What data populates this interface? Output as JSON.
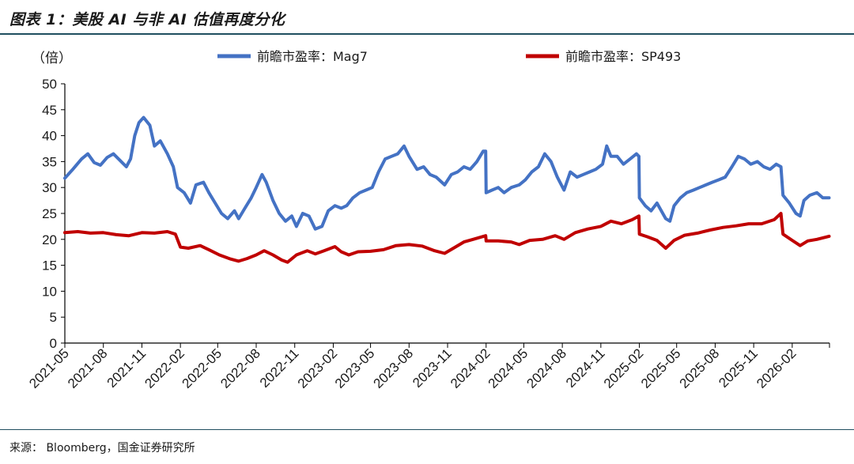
{
  "header": {
    "title": "图表 1：美股 AI 与非 AI 估值再度分化"
  },
  "footer": {
    "source": "来源： Bloomberg，国金证券研究所"
  },
  "chart_data": {
    "type": "line",
    "title": "图表 1：美股 AI 与非 AI 估值再度分化",
    "ylabel": "（倍）",
    "xlabel": "",
    "ylim": [
      0,
      50
    ],
    "yticks": [
      0,
      5,
      10,
      15,
      20,
      25,
      30,
      35,
      40,
      45,
      50
    ],
    "xlim": [
      "2021-05",
      "2026-05"
    ],
    "xticks": [
      "2021-05",
      "2021-08",
      "2021-11",
      "2022-02",
      "2022-05",
      "2022-08",
      "2022-11",
      "2023-02",
      "2023-05",
      "2023-08",
      "2023-11",
      "2024-02",
      "2024-05",
      "2024-08",
      "2024-11",
      "2025-02",
      "2025-05",
      "2025-08",
      "2025-11",
      "2026-02"
    ],
    "grid": false,
    "legend_position": "top",
    "colors": {
      "Mag7": "#4472c4",
      "SP493": "#c00000"
    },
    "series": [
      {
        "name": "前瞻市盈率：Mag7",
        "points": [
          [
            "2021-05-01",
            31.8
          ],
          [
            "2021-05-20",
            33.5
          ],
          [
            "2021-06-10",
            35.5
          ],
          [
            "2021-06-25",
            36.5
          ],
          [
            "2021-07-10",
            34.8
          ],
          [
            "2021-07-25",
            34.3
          ],
          [
            "2021-08-10",
            35.8
          ],
          [
            "2021-08-25",
            36.5
          ],
          [
            "2021-09-10",
            35.2
          ],
          [
            "2021-09-25",
            34.0
          ],
          [
            "2021-10-05",
            35.5
          ],
          [
            "2021-10-15",
            40.0
          ],
          [
            "2021-10-25",
            42.5
          ],
          [
            "2021-11-05",
            43.5
          ],
          [
            "2021-11-20",
            42.0
          ],
          [
            "2021-12-01",
            38.0
          ],
          [
            "2021-12-15",
            39.0
          ],
          [
            "2022-01-01",
            36.5
          ],
          [
            "2022-01-15",
            34.0
          ],
          [
            "2022-01-25",
            30.0
          ],
          [
            "2022-02-10",
            29.0
          ],
          [
            "2022-02-25",
            27.0
          ],
          [
            "2022-03-10",
            30.5
          ],
          [
            "2022-03-28",
            31.0
          ],
          [
            "2022-04-10",
            29.0
          ],
          [
            "2022-04-25",
            27.0
          ],
          [
            "2022-05-10",
            25.0
          ],
          [
            "2022-05-25",
            24.0
          ],
          [
            "2022-06-10",
            25.5
          ],
          [
            "2022-06-20",
            24.0
          ],
          [
            "2022-07-05",
            26.0
          ],
          [
            "2022-07-20",
            28.0
          ],
          [
            "2022-08-01",
            30.0
          ],
          [
            "2022-08-15",
            32.5
          ],
          [
            "2022-08-25",
            31.0
          ],
          [
            "2022-09-10",
            27.5
          ],
          [
            "2022-09-25",
            25.0
          ],
          [
            "2022-10-10",
            23.5
          ],
          [
            "2022-10-25",
            24.5
          ],
          [
            "2022-11-05",
            22.5
          ],
          [
            "2022-11-20",
            25.0
          ],
          [
            "2022-12-05",
            24.5
          ],
          [
            "2022-12-20",
            22.0
          ],
          [
            "2023-01-05",
            22.5
          ],
          [
            "2023-01-20",
            25.5
          ],
          [
            "2023-02-05",
            26.5
          ],
          [
            "2023-02-20",
            26.0
          ],
          [
            "2023-03-05",
            26.5
          ],
          [
            "2023-03-20",
            28.0
          ],
          [
            "2023-04-05",
            29.0
          ],
          [
            "2023-04-20",
            29.5
          ],
          [
            "2023-05-05",
            30.0
          ],
          [
            "2023-05-20",
            33.0
          ],
          [
            "2023-06-05",
            35.5
          ],
          [
            "2023-06-20",
            36.0
          ],
          [
            "2023-07-05",
            36.5
          ],
          [
            "2023-07-20",
            38.0
          ],
          [
            "2023-08-01",
            36.0
          ],
          [
            "2023-08-20",
            33.5
          ],
          [
            "2023-09-05",
            34.0
          ],
          [
            "2023-09-20",
            32.5
          ],
          [
            "2023-10-05",
            32.0
          ],
          [
            "2023-10-25",
            30.5
          ],
          [
            "2023-11-10",
            32.5
          ],
          [
            "2023-11-25",
            33.0
          ],
          [
            "2023-12-10",
            34.0
          ],
          [
            "2023-12-25",
            33.5
          ],
          [
            "2024-01-10",
            35.0
          ],
          [
            "2024-01-25",
            37.0
          ],
          [
            "2024-01-31",
            37.0
          ],
          [
            "2024-02-01",
            29.0
          ],
          [
            "2024-02-15",
            29.5
          ],
          [
            "2024-03-01",
            30.0
          ],
          [
            "2024-03-15",
            29.0
          ],
          [
            "2024-04-01",
            30.0
          ],
          [
            "2024-04-20",
            30.5
          ],
          [
            "2024-05-05",
            31.5
          ],
          [
            "2024-05-20",
            33.0
          ],
          [
            "2024-06-05",
            34.0
          ],
          [
            "2024-06-20",
            36.5
          ],
          [
            "2024-07-05",
            35.0
          ],
          [
            "2024-07-20",
            32.0
          ],
          [
            "2024-08-05",
            29.5
          ],
          [
            "2024-08-20",
            33.0
          ],
          [
            "2024-09-05",
            32.0
          ],
          [
            "2024-09-20",
            32.5
          ],
          [
            "2024-10-05",
            33.0
          ],
          [
            "2024-10-20",
            33.5
          ],
          [
            "2024-11-05",
            34.5
          ],
          [
            "2024-11-15",
            38.0
          ],
          [
            "2024-11-25",
            36.0
          ],
          [
            "2024-12-10",
            36.0
          ],
          [
            "2024-12-25",
            34.5
          ],
          [
            "2025-01-10",
            35.5
          ],
          [
            "2025-01-25",
            36.5
          ],
          [
            "2025-01-31",
            36.0
          ],
          [
            "2025-02-01",
            28.0
          ],
          [
            "2025-02-15",
            26.5
          ],
          [
            "2025-03-01",
            25.5
          ],
          [
            "2025-03-15",
            27.0
          ],
          [
            "2025-04-05",
            24.0
          ],
          [
            "2025-04-15",
            23.5
          ],
          [
            "2025-04-25",
            26.5
          ],
          [
            "2025-05-10",
            28.0
          ],
          [
            "2025-05-25",
            29.0
          ],
          [
            "2025-06-10",
            29.5
          ],
          [
            "2025-06-25",
            30.0
          ],
          [
            "2025-07-10",
            30.5
          ],
          [
            "2025-07-25",
            31.0
          ],
          [
            "2025-08-10",
            31.5
          ],
          [
            "2025-08-25",
            32.0
          ],
          [
            "2025-09-10",
            34.0
          ],
          [
            "2025-09-25",
            36.0
          ],
          [
            "2025-10-10",
            35.5
          ],
          [
            "2025-10-25",
            34.5
          ],
          [
            "2025-11-10",
            35.0
          ],
          [
            "2025-11-25",
            34.0
          ],
          [
            "2025-12-10",
            33.5
          ],
          [
            "2025-12-25",
            34.5
          ],
          [
            "2026-01-05",
            34.0
          ],
          [
            "2026-01-10",
            28.5
          ],
          [
            "2026-01-25",
            27.0
          ],
          [
            "2026-02-10",
            25.0
          ],
          [
            "2026-02-20",
            24.5
          ],
          [
            "2026-03-01",
            27.5
          ],
          [
            "2026-03-15",
            28.5
          ],
          [
            "2026-04-01",
            29.0
          ],
          [
            "2026-04-15",
            28.0
          ],
          [
            "2026-04-30",
            28.0
          ]
        ]
      },
      {
        "name": "前瞻市盈率：SP493",
        "points": [
          [
            "2021-05-01",
            21.3
          ],
          [
            "2021-06-01",
            21.5
          ],
          [
            "2021-07-01",
            21.2
          ],
          [
            "2021-08-01",
            21.3
          ],
          [
            "2021-09-01",
            20.9
          ],
          [
            "2021-10-01",
            20.7
          ],
          [
            "2021-11-01",
            21.3
          ],
          [
            "2021-12-01",
            21.2
          ],
          [
            "2022-01-01",
            21.5
          ],
          [
            "2022-01-20",
            21.0
          ],
          [
            "2022-02-01",
            18.5
          ],
          [
            "2022-02-20",
            18.3
          ],
          [
            "2022-03-20",
            18.8
          ],
          [
            "2022-04-10",
            18.0
          ],
          [
            "2022-05-05",
            17.0
          ],
          [
            "2022-06-01",
            16.2
          ],
          [
            "2022-06-20",
            15.8
          ],
          [
            "2022-07-10",
            16.3
          ],
          [
            "2022-08-01",
            17.0
          ],
          [
            "2022-08-20",
            17.8
          ],
          [
            "2022-09-10",
            17.0
          ],
          [
            "2022-10-01",
            16.0
          ],
          [
            "2022-10-15",
            15.6
          ],
          [
            "2022-11-05",
            17.0
          ],
          [
            "2022-12-01",
            17.8
          ],
          [
            "2022-12-20",
            17.2
          ],
          [
            "2023-01-10",
            17.8
          ],
          [
            "2023-02-05",
            18.6
          ],
          [
            "2023-02-20",
            17.6
          ],
          [
            "2023-03-10",
            17.0
          ],
          [
            "2023-04-01",
            17.6
          ],
          [
            "2023-05-01",
            17.7
          ],
          [
            "2023-06-01",
            18.0
          ],
          [
            "2023-07-01",
            18.8
          ],
          [
            "2023-08-01",
            19.0
          ],
          [
            "2023-09-01",
            18.7
          ],
          [
            "2023-10-01",
            17.8
          ],
          [
            "2023-10-25",
            17.3
          ],
          [
            "2023-11-15",
            18.3
          ],
          [
            "2023-12-10",
            19.5
          ],
          [
            "2024-01-01",
            20.0
          ],
          [
            "2024-01-31",
            20.7
          ],
          [
            "2024-02-01",
            19.7
          ],
          [
            "2024-03-01",
            19.7
          ],
          [
            "2024-04-01",
            19.5
          ],
          [
            "2024-04-20",
            19.0
          ],
          [
            "2024-05-15",
            19.8
          ],
          [
            "2024-06-15",
            20.0
          ],
          [
            "2024-07-15",
            20.7
          ],
          [
            "2024-08-05",
            20.0
          ],
          [
            "2024-09-01",
            21.3
          ],
          [
            "2024-10-01",
            22.0
          ],
          [
            "2024-11-01",
            22.5
          ],
          [
            "2024-11-25",
            23.5
          ],
          [
            "2024-12-20",
            23.0
          ],
          [
            "2025-01-15",
            23.8
          ],
          [
            "2025-01-31",
            24.5
          ],
          [
            "2025-02-01",
            21.0
          ],
          [
            "2025-02-20",
            20.5
          ],
          [
            "2025-03-15",
            19.8
          ],
          [
            "2025-04-05",
            18.3
          ],
          [
            "2025-04-25",
            19.8
          ],
          [
            "2025-05-20",
            20.8
          ],
          [
            "2025-06-20",
            21.2
          ],
          [
            "2025-07-20",
            21.8
          ],
          [
            "2025-08-20",
            22.3
          ],
          [
            "2025-09-20",
            22.6
          ],
          [
            "2025-10-20",
            23.0
          ],
          [
            "2025-11-20",
            23.0
          ],
          [
            "2025-12-20",
            23.8
          ],
          [
            "2026-01-05",
            25.0
          ],
          [
            "2026-01-10",
            21.0
          ],
          [
            "2026-02-01",
            19.8
          ],
          [
            "2026-02-20",
            18.8
          ],
          [
            "2026-03-10",
            19.7
          ],
          [
            "2026-04-01",
            20.0
          ],
          [
            "2026-04-30",
            20.6
          ]
        ]
      }
    ]
  }
}
